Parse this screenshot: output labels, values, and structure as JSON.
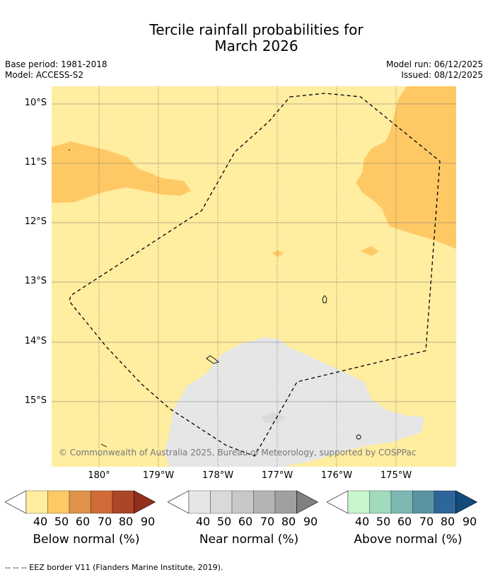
{
  "title_line1": "Tercile rainfall probabilities for",
  "title_line2": "March 2026",
  "meta": {
    "base_period": "Base period: 1981-2018",
    "model": "Model: ACCESS-S2",
    "model_run": "Model run: 06/12/2025",
    "issued": "Issued: 08/12/2025"
  },
  "lat_labels": [
    "10°S",
    "11°S",
    "12°S",
    "13°S",
    "14°S",
    "15°S"
  ],
  "lon_labels": [
    "180°",
    "179°W",
    "178°W",
    "177°W",
    "176°W",
    "175°W"
  ],
  "copyright": "© Commonwealth of Australia 2025, Bureau of Meteorology, supported by COSPPac",
  "legends": [
    {
      "label": "Below normal (%)",
      "ticks": [
        "40",
        "50",
        "60",
        "70",
        "80",
        "90"
      ],
      "colors": [
        "#ffffff",
        "#ffeda0",
        "#fec965",
        "#e0924a",
        "#d06a36",
        "#ad4528",
        "#922f1c"
      ]
    },
    {
      "label": "Near normal (%)",
      "ticks": [
        "40",
        "50",
        "60",
        "70",
        "80",
        "90"
      ],
      "colors": [
        "#ffffff",
        "#e6e6e6",
        "#d9d9d9",
        "#c8c8c8",
        "#b4b4b4",
        "#a0a0a0",
        "#808080"
      ]
    },
    {
      "label": "Above normal (%)",
      "ticks": [
        "40",
        "50",
        "60",
        "70",
        "80",
        "90"
      ],
      "colors": [
        "#ffffff",
        "#c7f5ce",
        "#a2dabd",
        "#7eb8b2",
        "#5b93a3",
        "#2f6699",
        "#124a7a"
      ]
    }
  ],
  "footnote": "--  --  -- EEZ border V11 (Flanders Marine Institute, 2019)."
}
